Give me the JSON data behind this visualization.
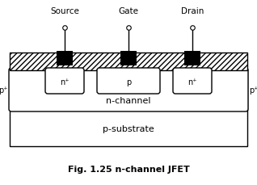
{
  "title": "Fig. 1.25 n-channel JFET",
  "bg_color": "#ffffff",
  "labels": {
    "source": "Source",
    "gate": "Gate",
    "drain": "Drain",
    "n_channel": "n-channel",
    "p_substrate": "p-substrate",
    "p_left": "p⁺",
    "p_right": "p⁺",
    "n_left": "n⁺",
    "n_right": "n⁺",
    "p_gate": "p"
  }
}
